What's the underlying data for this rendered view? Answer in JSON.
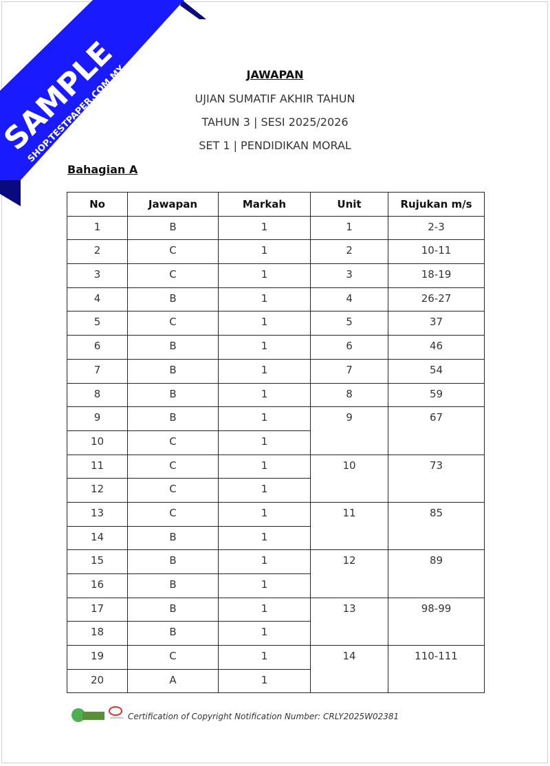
{
  "watermark": {
    "text": "SAMPLE",
    "subtext": "SHOP.TESTPAPER.COM.MY",
    "color": "#1a1aff"
  },
  "header": {
    "title": "JAWAPAN",
    "line1": "UJIAN SUMATIF AKHIR TAHUN",
    "line2": "TAHUN 3 | SESI 2025/2026",
    "line3": "SET 1 | PENDIDIKAN MORAL"
  },
  "section": "Bahagian A",
  "table": {
    "columns": [
      "No",
      "Jawapan",
      "Markah",
      "Unit",
      "Rujukan m/s"
    ],
    "rows": [
      {
        "no": "1",
        "jawapan": "B",
        "markah": "1"
      },
      {
        "no": "2",
        "jawapan": "C",
        "markah": "1"
      },
      {
        "no": "3",
        "jawapan": "C",
        "markah": "1"
      },
      {
        "no": "4",
        "jawapan": "B",
        "markah": "1"
      },
      {
        "no": "5",
        "jawapan": "C",
        "markah": "1"
      },
      {
        "no": "6",
        "jawapan": "B",
        "markah": "1"
      },
      {
        "no": "7",
        "jawapan": "B",
        "markah": "1"
      },
      {
        "no": "8",
        "jawapan": "B",
        "markah": "1"
      },
      {
        "no": "9",
        "jawapan": "B",
        "markah": "1"
      },
      {
        "no": "10",
        "jawapan": "C",
        "markah": "1"
      },
      {
        "no": "11",
        "jawapan": "C",
        "markah": "1"
      },
      {
        "no": "12",
        "jawapan": "C",
        "markah": "1"
      },
      {
        "no": "13",
        "jawapan": "C",
        "markah": "1"
      },
      {
        "no": "14",
        "jawapan": "B",
        "markah": "1"
      },
      {
        "no": "15",
        "jawapan": "B",
        "markah": "1"
      },
      {
        "no": "16",
        "jawapan": "B",
        "markah": "1"
      },
      {
        "no": "17",
        "jawapan": "B",
        "markah": "1"
      },
      {
        "no": "18",
        "jawapan": "B",
        "markah": "1"
      },
      {
        "no": "19",
        "jawapan": "C",
        "markah": "1"
      },
      {
        "no": "20",
        "jawapan": "A",
        "markah": "1"
      }
    ],
    "units": [
      {
        "unit": "1",
        "rujukan": "2-3",
        "span": 1
      },
      {
        "unit": "2",
        "rujukan": "10-11",
        "span": 1
      },
      {
        "unit": "3",
        "rujukan": "18-19",
        "span": 1
      },
      {
        "unit": "4",
        "rujukan": "26-27",
        "span": 1
      },
      {
        "unit": "5",
        "rujukan": "37",
        "span": 1
      },
      {
        "unit": "6",
        "rujukan": "46",
        "span": 1
      },
      {
        "unit": "7",
        "rujukan": "54",
        "span": 1
      },
      {
        "unit": "8",
        "rujukan": "59",
        "span": 1
      },
      {
        "unit": "9",
        "rujukan": "67",
        "span": 2
      },
      {
        "unit": "10",
        "rujukan": "73",
        "span": 2
      },
      {
        "unit": "11",
        "rujukan": "85",
        "span": 2
      },
      {
        "unit": "12",
        "rujukan": "89",
        "span": 2
      },
      {
        "unit": "13",
        "rujukan": "98-99",
        "span": 2
      },
      {
        "unit": "14",
        "rujukan": "110-111",
        "span": 2
      }
    ]
  },
  "footer": {
    "text": "Certification of Copyright Notification Number: CRLY2025W02381"
  }
}
